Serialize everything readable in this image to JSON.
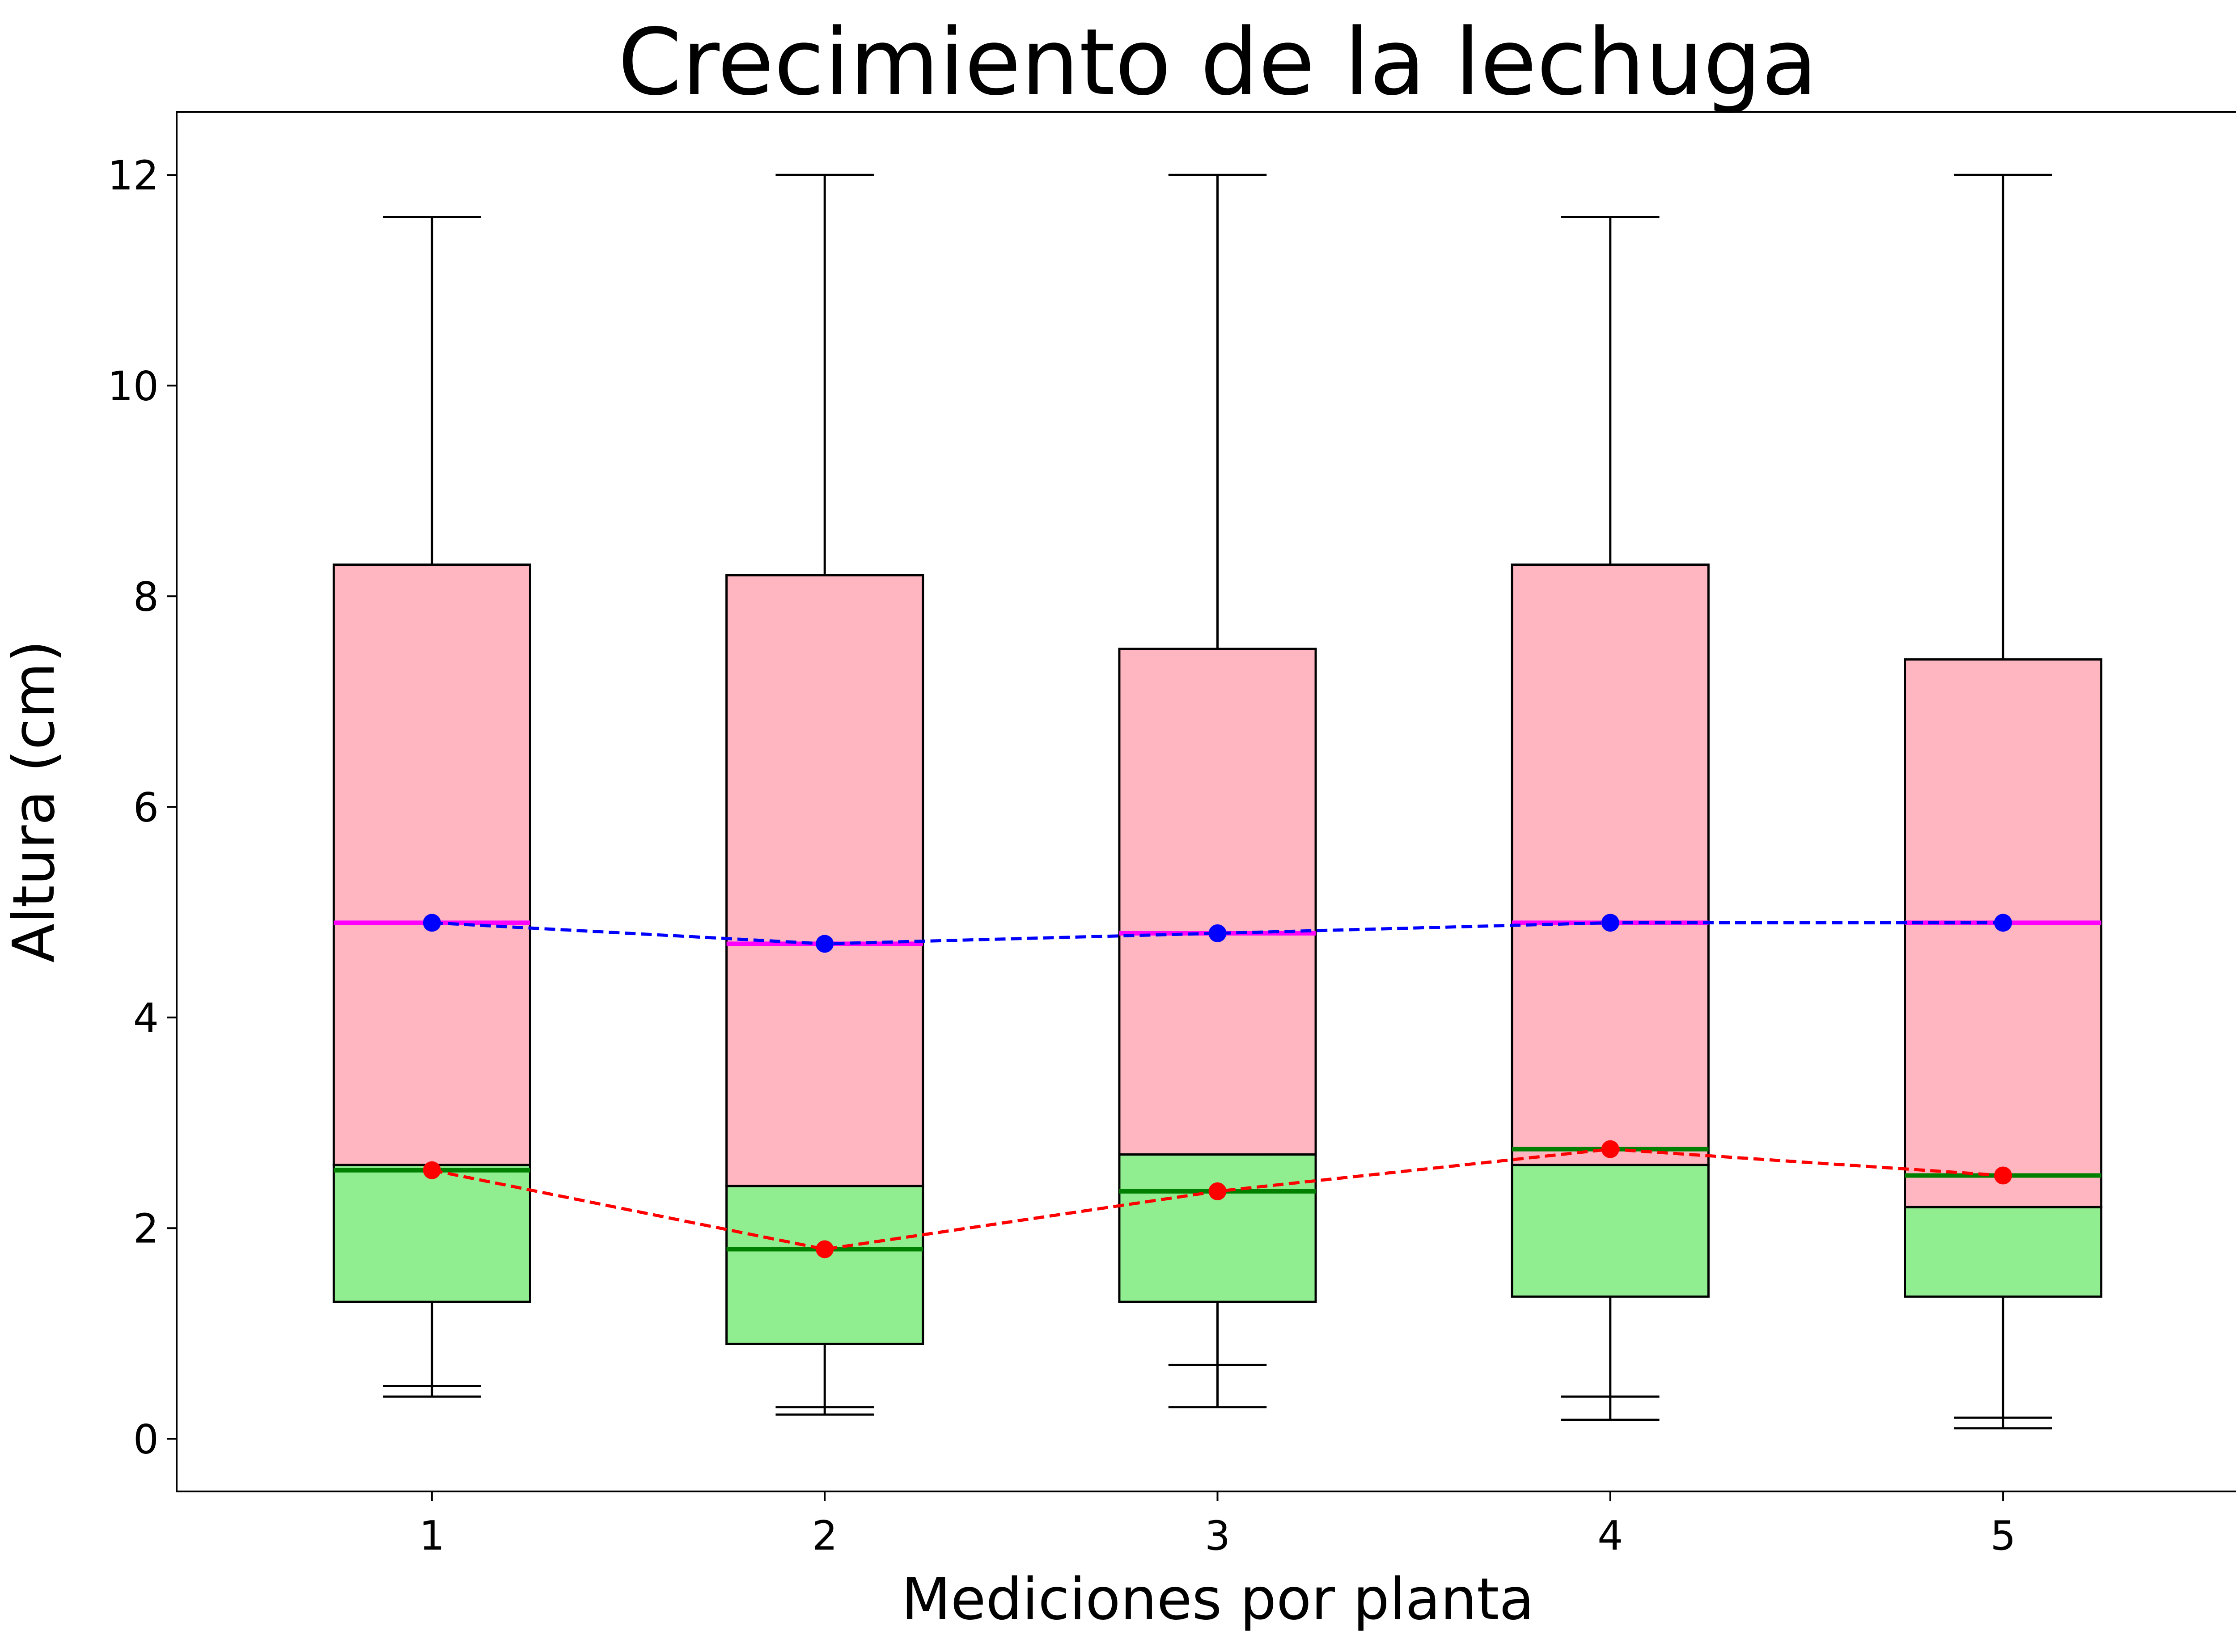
{
  "chart_data": {
    "type": "box",
    "title": "Crecimiento de la lechuga",
    "xlabel": "Mediciones por planta",
    "ylabel": "Altura (cm)",
    "categories": [
      "1",
      "2",
      "3",
      "4",
      "5"
    ],
    "ylim": [
      -0.5,
      12.6
    ],
    "yticks": [
      0,
      2,
      4,
      6,
      8,
      10,
      12
    ],
    "ytick_labels": [
      "0",
      "2",
      "4",
      "6",
      "8",
      "10",
      "12"
    ],
    "grid": false,
    "series": [
      {
        "whisker_low": [
          0.4,
          0.23,
          0.3,
          0.18,
          0.1
        ],
        "box_low": [
          1.3,
          0.9,
          1.3,
          1.35,
          1.35
        ],
        "box_high": [
          2.6,
          2.4,
          2.7,
          2.6,
          2.2
        ],
        "whisker_high": [
          2.6,
          2.4,
          2.7,
          2.6,
          2.2
        ],
        "median": [
          2.55,
          1.8,
          2.35,
          2.75,
          2.5
        ],
        "cap_low": [
          0.5,
          0.3,
          0.7,
          0.4,
          0.2
        ],
        "fill_color": "#90EE90",
        "median_color": "#008000",
        "mean": [
          2.55,
          1.8,
          2.35,
          2.75,
          2.5
        ],
        "mean_color": "#ff0000"
      },
      {
        "whisker_low": [
          2.6,
          2.4,
          2.7,
          2.6,
          2.2
        ],
        "box_low": [
          2.6,
          2.4,
          2.7,
          2.6,
          2.2
        ],
        "box_high": [
          8.3,
          8.2,
          7.5,
          8.3,
          7.4
        ],
        "whisker_high": [
          11.6,
          12.0,
          12.0,
          11.6,
          12.0
        ],
        "median": [
          4.9,
          4.7,
          4.8,
          4.9,
          4.9
        ],
        "fill_color": "#FFB6C1",
        "median_color": "#FF00FF",
        "mean": [
          4.9,
          4.7,
          4.8,
          4.9,
          4.9
        ],
        "mean_color": "#0000ff"
      }
    ]
  }
}
